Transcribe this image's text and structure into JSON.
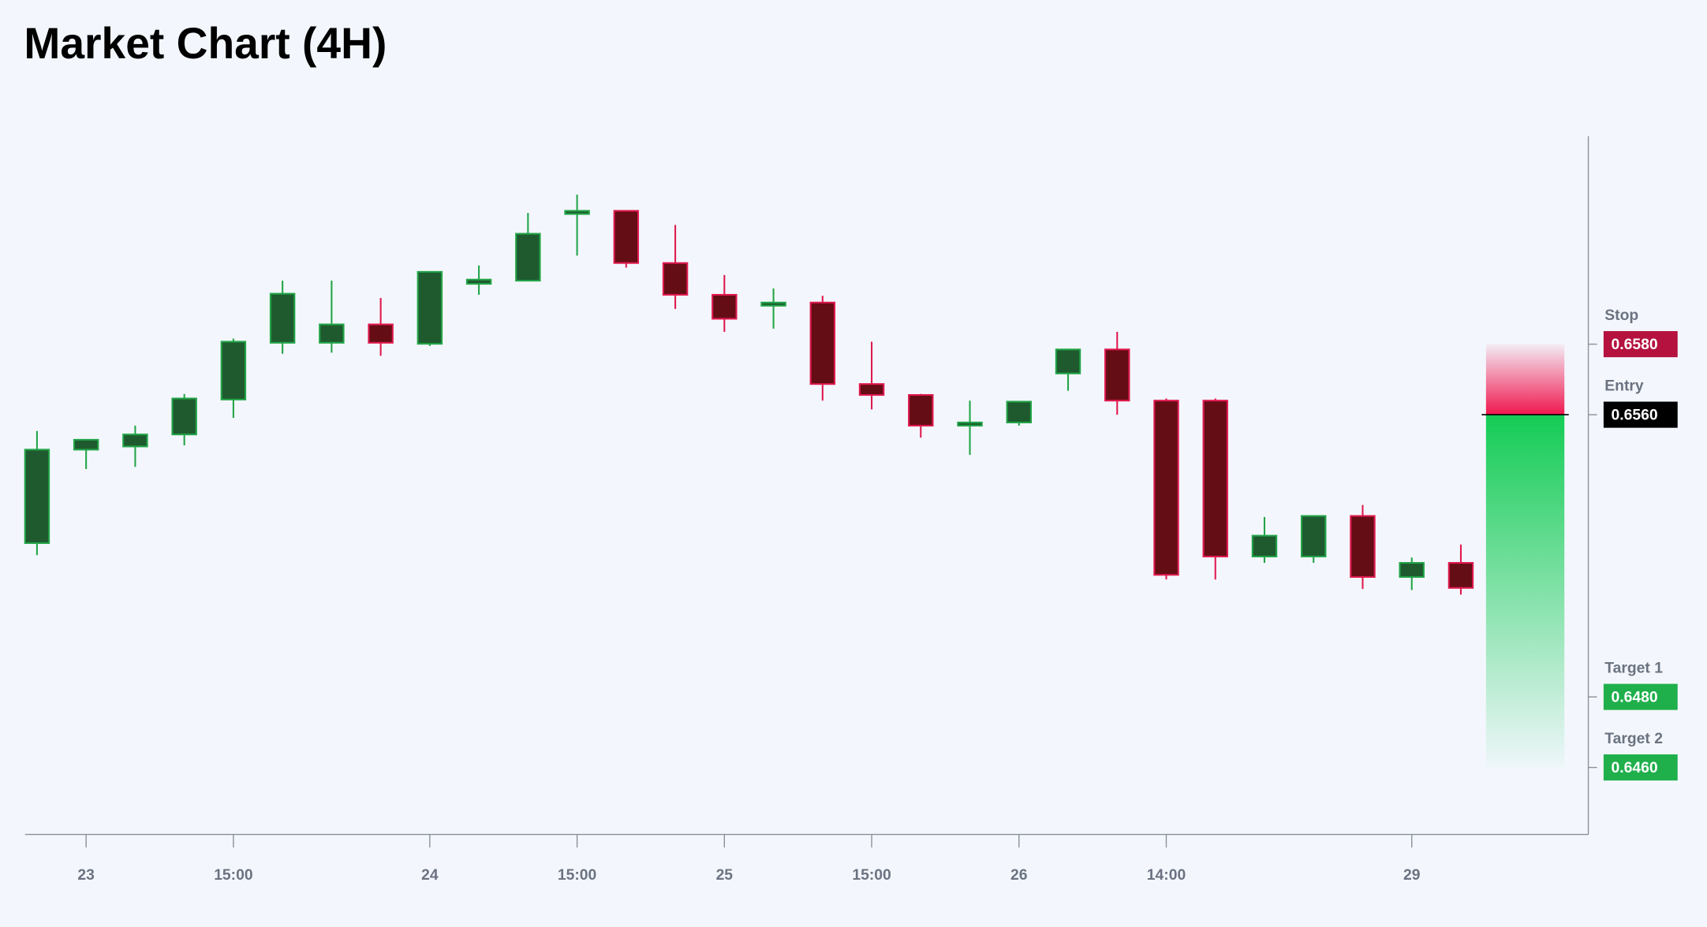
{
  "chart_data": {
    "type": "candlestick",
    "title": "Market Chart (4H)",
    "categories": [
      null,
      "23",
      null,
      null,
      "15:00",
      null,
      null,
      null,
      "24",
      null,
      null,
      "15:00",
      null,
      null,
      "25",
      null,
      null,
      "15:00",
      null,
      null,
      "26",
      null,
      null,
      "14:00",
      null,
      null,
      null,
      null,
      "29",
      null
    ],
    "open": [
      0.65236,
      0.65501,
      0.6551,
      0.65544,
      0.65643,
      0.65804,
      0.65804,
      0.65856,
      0.65801,
      0.65971,
      0.6598,
      0.66169,
      0.66178,
      0.6603,
      0.6594,
      0.65909,
      0.65918,
      0.65687,
      0.65656,
      0.65569,
      0.65578,
      0.65717,
      0.65785,
      0.6564,
      0.6564,
      0.65198,
      0.65198,
      0.65313,
      0.6514,
      0.6518
    ],
    "high": [
      0.65554,
      0.65529,
      0.65569,
      0.65659,
      0.65816,
      0.6598,
      0.6598,
      0.65931,
      0.66005,
      0.66023,
      0.66172,
      0.66224,
      0.66178,
      0.66138,
      0.65996,
      0.65958,
      0.65937,
      0.65807,
      0.65659,
      0.6564,
      0.65637,
      0.65785,
      0.65835,
      0.65646,
      0.65646,
      0.6531,
      0.65313,
      0.65344,
      0.65195,
      0.65232
    ],
    "low": [
      0.65202,
      0.65446,
      0.65452,
      0.65513,
      0.65591,
      0.65773,
      0.65776,
      0.65767,
      0.65795,
      0.6594,
      0.6598,
      0.66051,
      0.66017,
      0.659,
      0.65835,
      0.65844,
      0.6564,
      0.65615,
      0.65535,
      0.65486,
      0.65569,
      0.65668,
      0.656,
      0.65133,
      0.65133,
      0.6518,
      0.6518,
      0.65106,
      0.65103,
      0.6509
    ],
    "close": [
      0.65501,
      0.65529,
      0.65544,
      0.65646,
      0.65807,
      0.65943,
      0.65856,
      0.65804,
      0.66005,
      0.65983,
      0.66113,
      0.66178,
      0.6603,
      0.6594,
      0.65872,
      0.65918,
      0.65687,
      0.65656,
      0.65569,
      0.65578,
      0.65637,
      0.65785,
      0.6564,
      0.65146,
      0.65198,
      0.65257,
      0.65313,
      0.6514,
      0.6518,
      0.65109
    ],
    "up_color": "#1f5a2f",
    "up_edge_color": "#22a447",
    "down_color": "#640d14",
    "down_edge_color": "#e0194f",
    "ylim": [
      0.6441,
      0.6639
    ],
    "levels": [
      {
        "name": "Stop",
        "value": 0.658,
        "label": "0.6580",
        "color": "#b5123f"
      },
      {
        "name": "Entry",
        "value": 0.656,
        "label": "0.6560",
        "color": "#000000"
      },
      {
        "name": "Target 1",
        "value": 0.648,
        "label": "0.6480",
        "color": "#1faf4b"
      },
      {
        "name": "Target 2",
        "value": 0.646,
        "label": "0.6460",
        "color": "#1faf4b"
      }
    ]
  }
}
